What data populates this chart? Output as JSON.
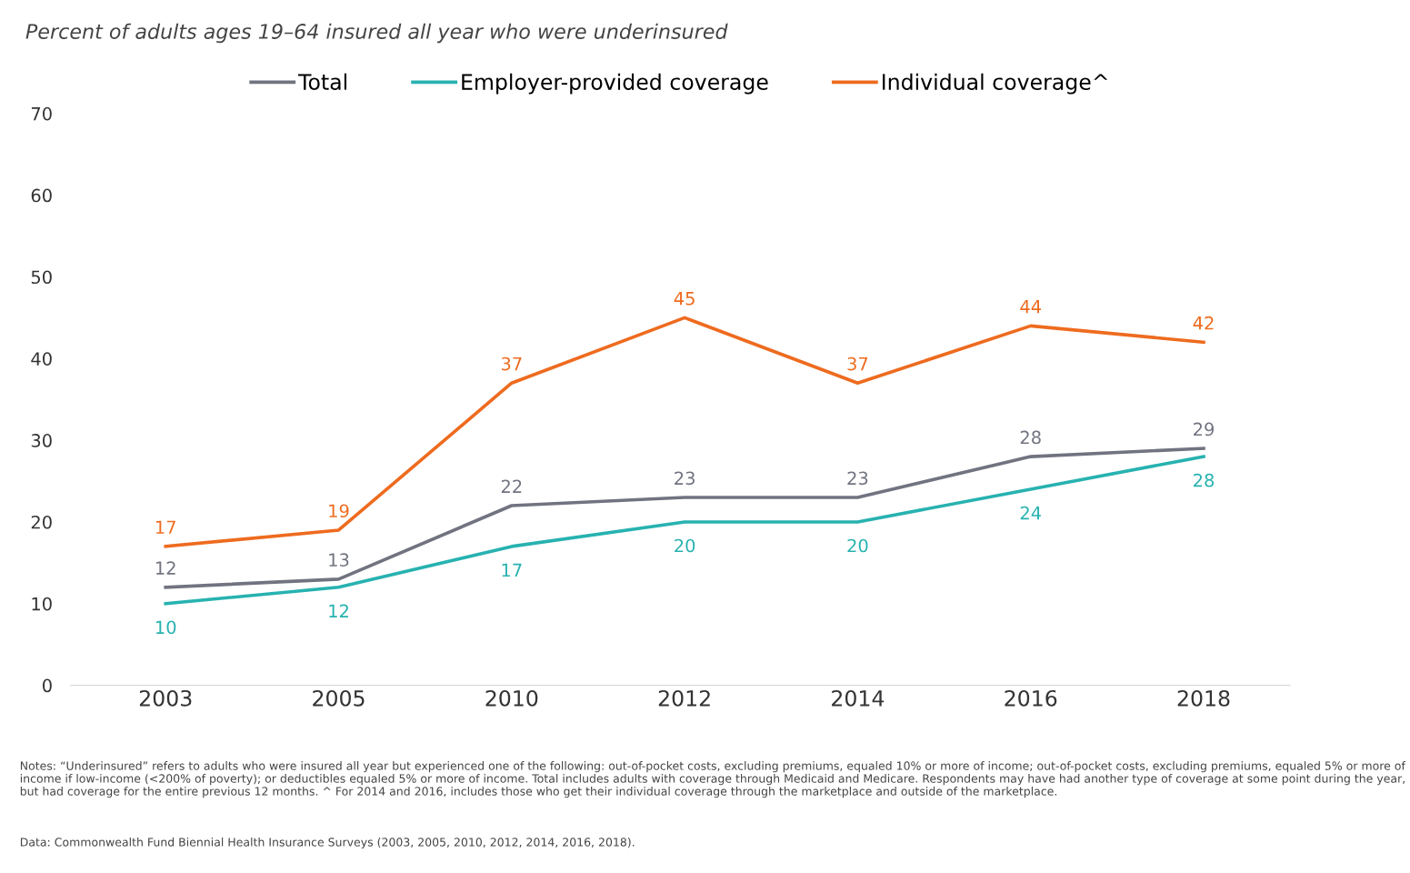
{
  "chart_data": {
    "type": "line",
    "title": "Percent of adults ages 19–64 insured all year who were underinsured",
    "categories": [
      "2003",
      "2005",
      "2010",
      "2012",
      "2014",
      "2016",
      "2018"
    ],
    "series": [
      {
        "name": "Total",
        "color": "#717380",
        "values": [
          12,
          13,
          22,
          23,
          23,
          28,
          29
        ]
      },
      {
        "name": "Employer-provided coverage",
        "color": "#27b2b0",
        "values": [
          10,
          12,
          17,
          20,
          20,
          24,
          28
        ]
      },
      {
        "name": "Individual coverage^",
        "color": "#ee6b1f",
        "values": [
          17,
          19,
          37,
          45,
          37,
          44,
          42
        ]
      }
    ],
    "ylim": [
      0,
      70
    ],
    "yticks": [
      0,
      10,
      20,
      30,
      40,
      50,
      60,
      70
    ],
    "data_labels": true,
    "legend": "top",
    "grid": false,
    "marker": "none",
    "line_style": "solid",
    "annotations": [
      "Notes: “Underinsured” refers to adults who were insured all year but experienced one of the following: out-of-pocket costs, excluding premiums, equaled 10% or more of income; out-of-pocket costs, excluding premiums, equaled 5% or more of income if low-income (<200% of poverty); or deductibles equaled 5% or more of income. Total includes adults with coverage through Medicaid and Medicare. Respondents may have had another type of coverage at some point during the year, but had coverage for the entire previous 12 months. ^ For 2014 and 2016, includes those who get their individual coverage through the marketplace and outside of the marketplace.",
      "Data: Commonwealth Fund Biennial Health Insurance Surveys (2003, 2005, 2010, 2012, 2014, 2016, 2018)."
    ]
  }
}
